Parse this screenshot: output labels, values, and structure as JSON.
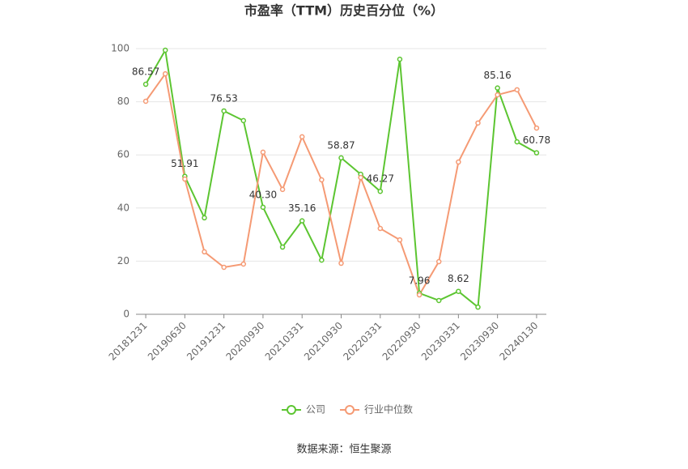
{
  "chart_data": {
    "type": "line",
    "title": "市盈率（TTM）历史百分位（%）",
    "source": "数据来源：恒生聚源",
    "categories": [
      "20181231",
      null,
      "20190630",
      null,
      "20191231",
      null,
      "20200930",
      null,
      "20210331",
      null,
      "20210930",
      null,
      "20220331",
      null,
      "20220930",
      null,
      "20230331",
      null,
      "20230930",
      null,
      "20240130"
    ],
    "series": [
      {
        "name": "公司",
        "color": "#5cc531",
        "values": [
          86.57,
          99.4,
          51.91,
          36.3,
          76.53,
          72.9,
          40.3,
          25.3,
          35.16,
          20.4,
          58.87,
          52.7,
          46.27,
          96,
          7.96,
          5.2,
          8.62,
          2.7,
          85.16,
          64.9,
          60.78
        ],
        "value_labels": [
          "86.57",
          null,
          "51.91",
          null,
          "76.53",
          null,
          "40.30",
          null,
          "35.16",
          null,
          "58.87",
          null,
          "46.27",
          null,
          "7.96",
          null,
          "8.62",
          null,
          "85.16",
          null,
          "60.78"
        ]
      },
      {
        "name": "行业中位数",
        "color": "#f59a74",
        "values": [
          80.2,
          90.5,
          50.9,
          23.5,
          17.7,
          18.9,
          61,
          47,
          66.8,
          50.6,
          19.2,
          51.5,
          32.3,
          28,
          7.3,
          19.8,
          57.3,
          72,
          82.6,
          84.5,
          70.1
        ]
      }
    ],
    "ylim": [
      0,
      100
    ],
    "yticks": [
      0,
      20,
      40,
      60,
      80,
      100
    ],
    "grid": true,
    "legend": "bottom"
  }
}
